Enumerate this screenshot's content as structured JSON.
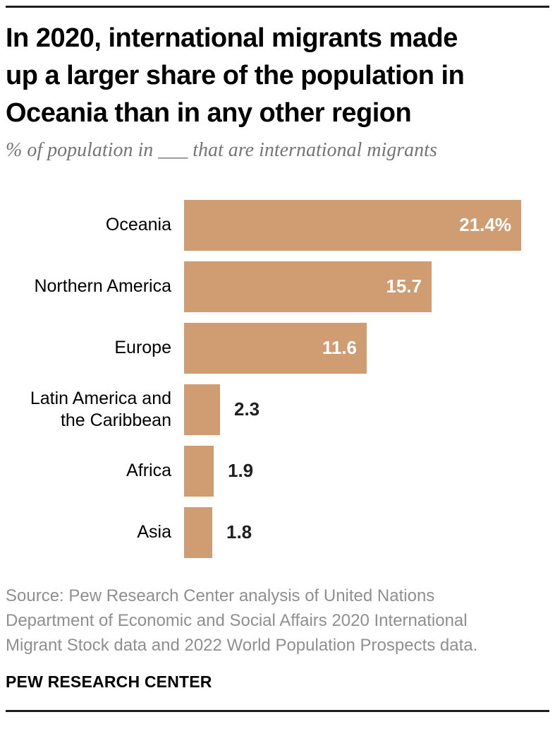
{
  "header": {
    "title_lines": [
      "In 2020, international migrants made",
      "up a larger share of the population in",
      "Oceania than in any other region"
    ],
    "subtitle": "% of population in ___ that are international migrants"
  },
  "chart_data": {
    "type": "bar",
    "orientation": "horizontal",
    "title": "In 2020, international migrants made up a larger share of the population in Oceania than in any other region",
    "subtitle": "% of population in ___ that are international migrants",
    "categories": [
      "Oceania",
      "Northern America",
      "Europe",
      "Latin America and\nthe Caribbean",
      "Africa",
      "Asia"
    ],
    "values": [
      21.4,
      15.7,
      11.6,
      2.3,
      1.9,
      1.8
    ],
    "value_labels": [
      "21.4%",
      "15.7",
      "11.6",
      "2.3",
      "1.9",
      "1.8"
    ],
    "xlabel": "",
    "ylabel": "",
    "xlim": [
      0,
      21.4
    ],
    "grid": false,
    "legend": false,
    "bar_color": "#d09c72",
    "value_inside_color": "#ffffff",
    "value_outside_color": "#1f1f1f"
  },
  "footer": {
    "source_lines": [
      "Source: Pew Research Center analysis of United Nations",
      "Department of Economic and Social Affairs 2020 International",
      "Migrant Stock data and 2022 World Population Prospects data."
    ],
    "brand": "PEW RESEARCH CENTER"
  }
}
